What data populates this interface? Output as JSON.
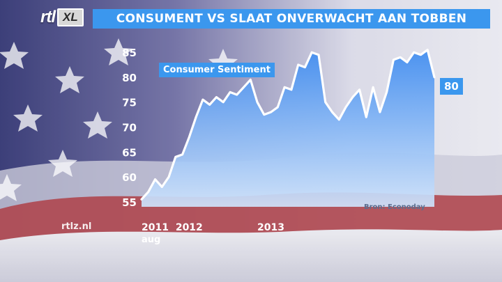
{
  "header": {
    "logo_main": "rtl",
    "logo_xl": "XL",
    "title": "CONSUMENT VS SLAAT ONVERWACHT AAN TOBBEN"
  },
  "watermark": "rtlz.nl",
  "colors": {
    "accent": "#3b97ee",
    "line": "#ffffff",
    "area_top": "#3f8cf0",
    "area_bottom": "#cfe3fb"
  },
  "chart_data": {
    "type": "area",
    "title": "",
    "series": [
      {
        "name": "Consumer Sentiment",
        "values": [
          55.5,
          57,
          59.5,
          58,
          60,
          64,
          64.5,
          68,
          72,
          75.5,
          74.5,
          76,
          75,
          77,
          76.5,
          78,
          79.5,
          75,
          72.5,
          73,
          74,
          78,
          77.5,
          82.5,
          82,
          85,
          84.5,
          75,
          73,
          71.5,
          74,
          76,
          77.5,
          72,
          78,
          73,
          77,
          83.5,
          84,
          83,
          85,
          84.5,
          85.5,
          80
        ]
      }
    ],
    "ylim": [
      54,
      86
    ],
    "yticks": [
      "55",
      "60",
      "65",
      "70",
      "75",
      "80",
      "85"
    ],
    "xticks": [
      {
        "label": "2011",
        "sub": "aug",
        "index": 0
      },
      {
        "label": "2012",
        "sub": "",
        "index": 5
      },
      {
        "label": "2013",
        "sub": "",
        "index": 17
      }
    ],
    "end_label": "80",
    "source": "Bron: Econoday",
    "grid": false
  }
}
